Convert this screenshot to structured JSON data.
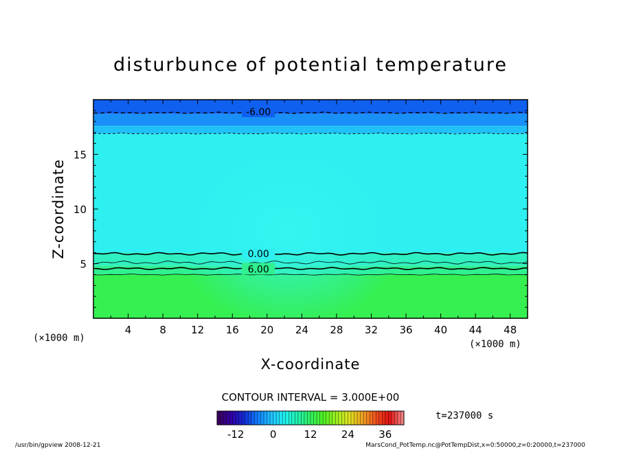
{
  "chart_data": {
    "type": "heatmap",
    "title": "disturbunce of potential temperature",
    "xlabel": "X-coordinate",
    "ylabel": "Z-coordinate",
    "x_unit_left": "(×1000 m)",
    "x_unit_right": "(×1000 m)",
    "xlim": [
      0,
      50
    ],
    "ylim": [
      0,
      20
    ],
    "x_ticks": [
      4,
      8,
      12,
      16,
      20,
      24,
      28,
      32,
      36,
      40,
      44,
      48
    ],
    "y_ticks": [
      5,
      10,
      15
    ],
    "contour_interval_text": "CONTOUR INTERVAL = 3.000E+00",
    "time_text": "t=237000 s",
    "colorbar": {
      "min": -18,
      "max": 42,
      "ticks": [
        -12,
        0,
        12,
        24,
        36
      ],
      "colors": [
        "#3b0060",
        "#3000a8",
        "#1030d8",
        "#1080ff",
        "#20c0ff",
        "#20f0f0",
        "#20f0b0",
        "#30f060",
        "#50f020",
        "#a0f020",
        "#e0e020",
        "#f0a020",
        "#f05020",
        "#e01010",
        "#f08080"
      ]
    },
    "contour_labels": [
      {
        "text": "-6.00",
        "x": 19,
        "z": 18.9
      },
      {
        "text": "0.00",
        "x": 19,
        "z": 5.9
      },
      {
        "text": "6.00",
        "x": 19,
        "z": 4.5
      }
    ],
    "field_bands": [
      {
        "z_from": 18.7,
        "z_to": 20,
        "value": -9,
        "color": "#1060f0"
      },
      {
        "z_from": 17.6,
        "z_to": 18.7,
        "value": -6,
        "color": "#1890f8"
      },
      {
        "z_from": 16.9,
        "z_to": 17.6,
        "value": -3,
        "color": "#20c0f8"
      },
      {
        "z_from": 6.0,
        "z_to": 16.9,
        "value": 0,
        "color": "#2ff0f0"
      },
      {
        "z_from": 4.8,
        "z_to": 6.0,
        "value": 3,
        "color": "#2ff0c0"
      },
      {
        "z_from": 4.0,
        "z_to": 4.8,
        "value": 6,
        "color": "#30f090"
      },
      {
        "z_from": 0,
        "z_to": 4.0,
        "value": 9,
        "color": "#35f050"
      }
    ]
  },
  "footer": {
    "left": "/usr/bin/gpview   2008-12-21",
    "right": "MarsCond_PotTemp.nc@PotTempDist,x=0:50000,z=0:20000,t=237000"
  }
}
